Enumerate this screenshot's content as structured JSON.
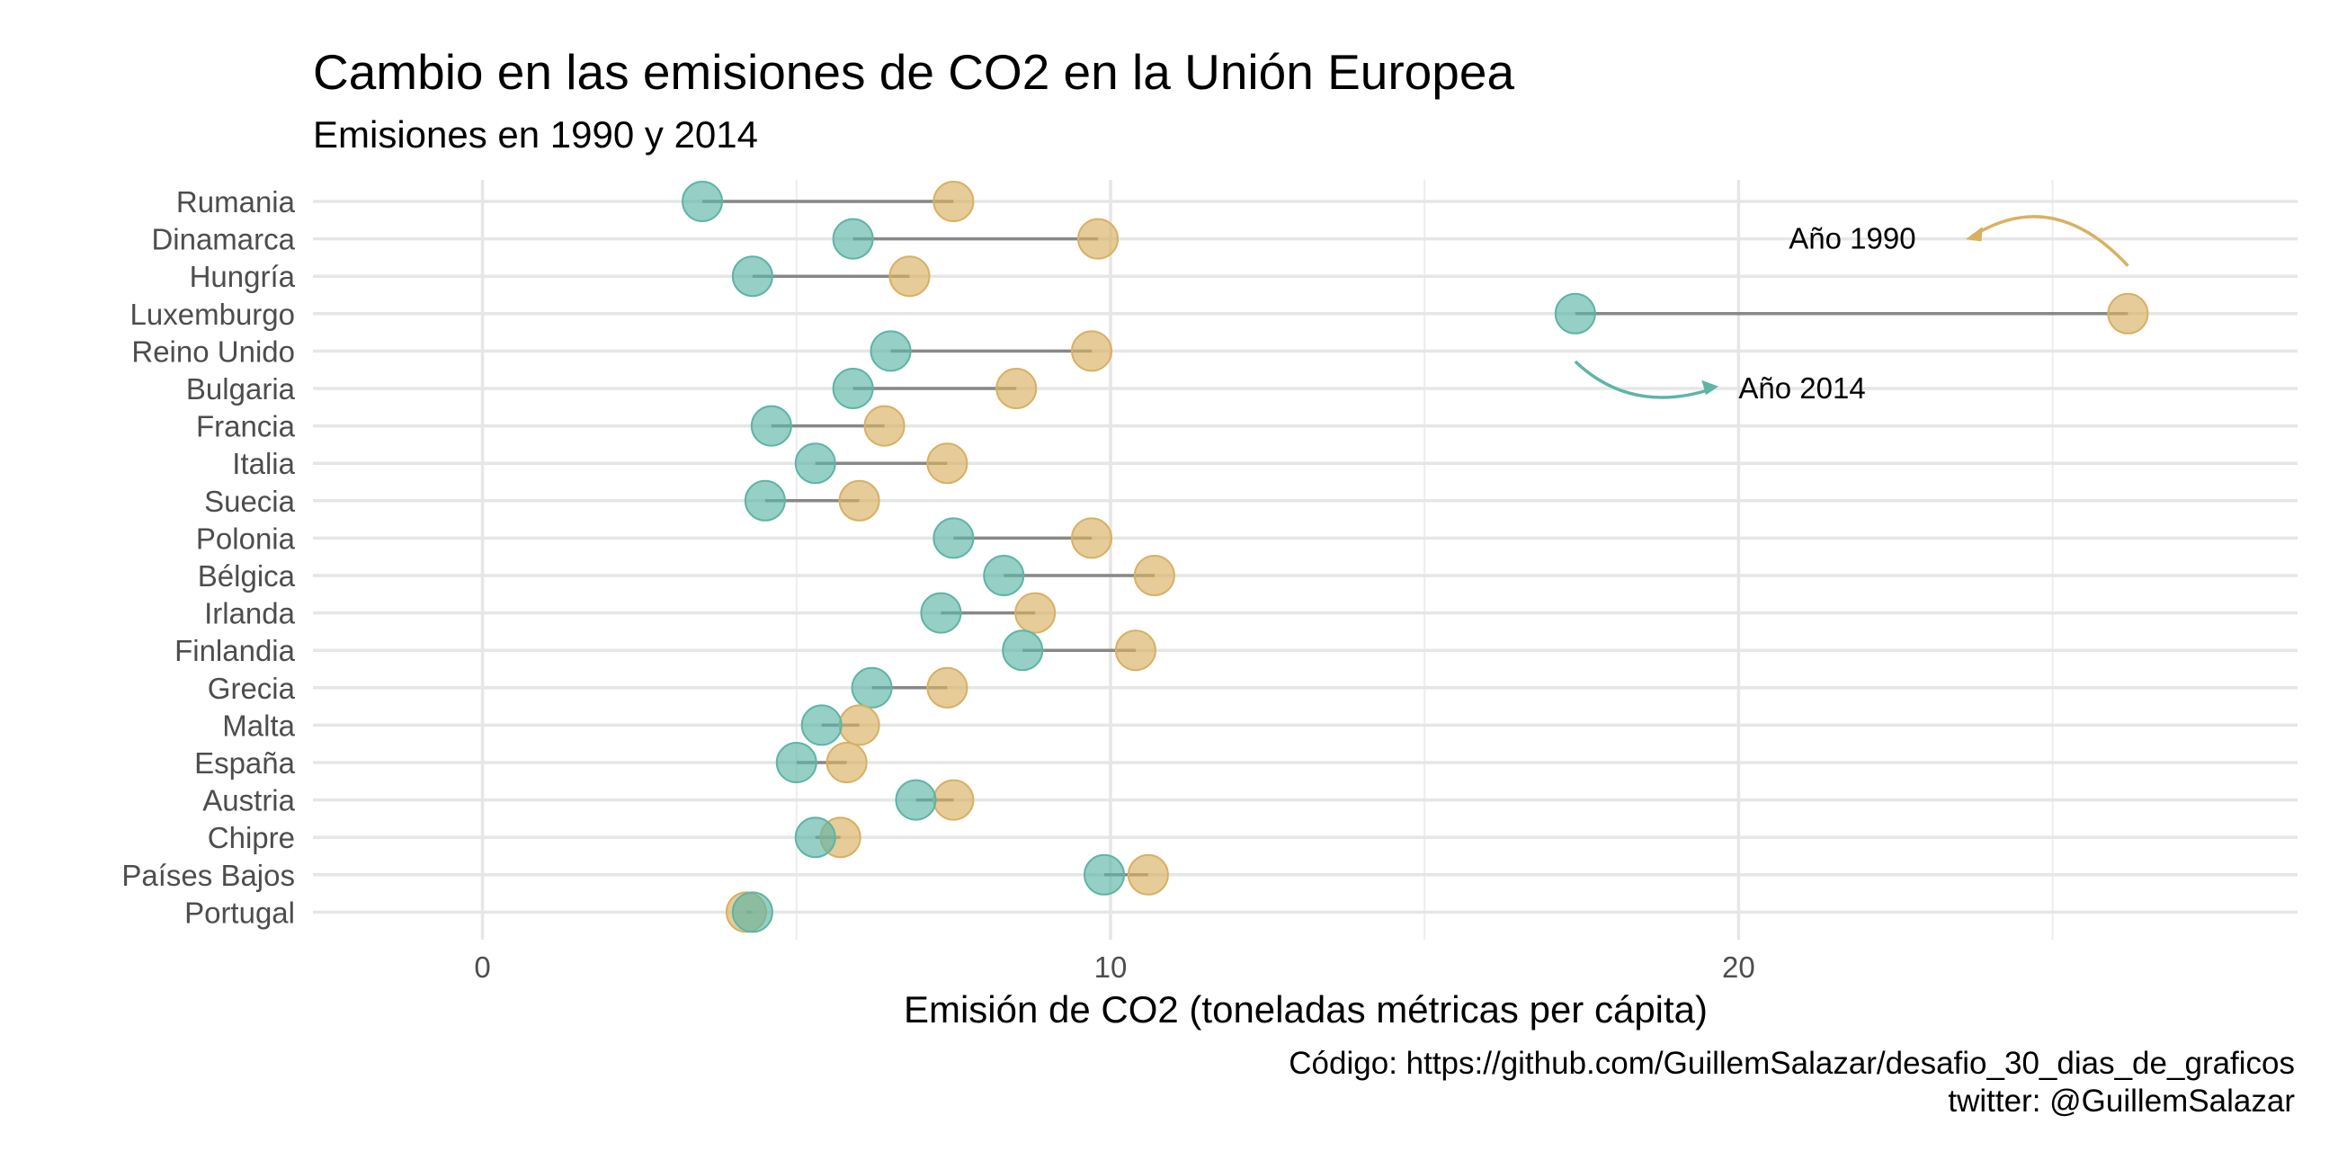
{
  "title": "Cambio en las emisiones de CO2 en la Unión Europea",
  "subtitle": "Emisiones en 1990 y 2014",
  "caption": {
    "line1": "Código: https://github.com/GuillemSalazar/desafio_30_dias_de_graficos",
    "line2": "twitter: @GuillemSalazar"
  },
  "colors": {
    "year_1990": "#d9b063",
    "year_2014": "#5db5a6",
    "segment": "#888888",
    "grid": "#e6e6e6"
  },
  "chart_data": {
    "type": "dumbbell",
    "title": "Cambio en las emisiones de CO2 en la Unión Europea",
    "subtitle": "Emisiones en 1990 y 2014",
    "xlabel": "Emisión de CO2 (toneladas métricas per cápita)",
    "ylabel": "",
    "xlim": [
      -2.7,
      28.9
    ],
    "x_ticks": [
      0,
      10,
      20
    ],
    "grid": true,
    "categories": [
      "Rumania",
      "Dinamarca",
      "Hungría",
      "Luxemburgo",
      "Reino Unido",
      "Bulgaria",
      "Francia",
      "Italia",
      "Suecia",
      "Polonia",
      "Bélgica",
      "Irlanda",
      "Finlandia",
      "Grecia",
      "Malta",
      "España",
      "Austria",
      "Chipre",
      "Países Bajos",
      "Portugal"
    ],
    "series": [
      {
        "name": "Año 1990",
        "values": [
          7.5,
          9.8,
          6.8,
          26.2,
          9.7,
          8.5,
          6.4,
          7.4,
          6.0,
          9.7,
          10.7,
          8.8,
          10.4,
          7.4,
          6.0,
          5.8,
          7.5,
          5.7,
          10.6,
          4.2
        ]
      },
      {
        "name": "Año 2014",
        "values": [
          3.5,
          5.9,
          4.3,
          17.4,
          6.5,
          5.9,
          4.6,
          5.3,
          4.5,
          7.5,
          8.3,
          7.3,
          8.6,
          6.2,
          5.4,
          5.0,
          6.9,
          5.3,
          9.9,
          4.3
        ]
      }
    ],
    "annotations": [
      {
        "text": "Año 1990",
        "x": 20.8,
        "y": "Dinamarca"
      },
      {
        "text": "Año 2014",
        "x": 20.0,
        "y": "Bulgaria"
      }
    ]
  }
}
